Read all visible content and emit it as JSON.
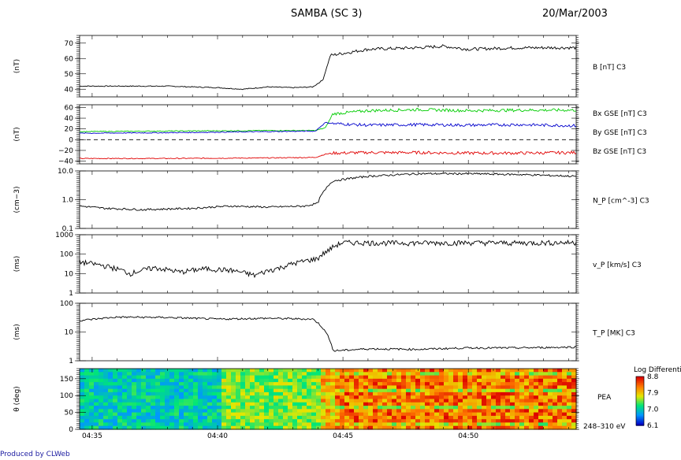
{
  "header": {
    "title": "SAMBA (SC 3)",
    "date": "20/Mar/2003"
  },
  "footer": {
    "credit": "Produced by CLWeb"
  },
  "colors": {
    "black": "#000000",
    "red": "#e00000",
    "green": "#00cc00",
    "blue": "#0000cc"
  },
  "chart_data": [
    {
      "type": "line",
      "panel": "B",
      "ylabel": "(nT)",
      "right_label": "B [nT] C3",
      "ylim": [
        35,
        75
      ],
      "yticks": [
        "40",
        "50",
        "60",
        "70"
      ],
      "x": [
        "04:34.5",
        "04:36",
        "04:38",
        "04:40",
        "04:41",
        "04:42",
        "04:43",
        "04:43.8",
        "04:44.2",
        "04:44.5",
        "04:46",
        "04:48",
        "04:49",
        "04:50",
        "04:52",
        "04:54.3"
      ],
      "series": [
        {
          "values": [
            42,
            42,
            42,
            41,
            40,
            41.5,
            41,
            41.5,
            46,
            62,
            66,
            67,
            68,
            66,
            67,
            67
          ]
        }
      ]
    },
    {
      "type": "line",
      "panel": "Bgse",
      "ylabel": "(nT)",
      "ylim": [
        -45,
        65
      ],
      "yticks": [
        "60",
        "40",
        "20",
        "0",
        "−20",
        "−40"
      ],
      "zero_line": "dashed",
      "x": [
        "04:34.5",
        "04:38",
        "04:42",
        "04:43.9",
        "04:44.3",
        "04:44.6",
        "04:46",
        "04:48",
        "04:50",
        "04:52",
        "04:54.3"
      ],
      "series": [
        {
          "name": "Bx GSE [nT] C3",
          "color": "#e00000",
          "values": [
            -35,
            -35,
            -34,
            -33,
            -27,
            -25,
            -24,
            -24,
            -25,
            -25,
            -24
          ]
        },
        {
          "name": "By GSE [nT] C3",
          "color": "#00cc00",
          "values": [
            15,
            16,
            17,
            17,
            22,
            48,
            54,
            56,
            54,
            55,
            55
          ]
        },
        {
          "name": "Bz GSE [nT] C3",
          "color": "#0000cc",
          "values": [
            12,
            13,
            15,
            16,
            32,
            30,
            27,
            28,
            27,
            28,
            26
          ]
        }
      ]
    },
    {
      "type": "line",
      "panel": "Np",
      "scale": "log",
      "ylabel": "(cm−3)",
      "right_label": "N_P [cm^-3] C3",
      "ylim": [
        0.1,
        10
      ],
      "yticks": [
        "10.0",
        "1.0",
        "0.1"
      ],
      "x": [
        "04:34.5",
        "04:35.5",
        "04:37",
        "04:39",
        "04:40.5",
        "04:42",
        "04:43.5",
        "04:44",
        "04:44.3",
        "04:44.6",
        "04:46",
        "04:48",
        "04:50",
        "04:52",
        "04:54.3"
      ],
      "series": [
        {
          "values": [
            0.6,
            0.5,
            0.45,
            0.5,
            0.6,
            0.55,
            0.6,
            0.75,
            2.2,
            4.5,
            6.5,
            8,
            8,
            7.5,
            6.5
          ]
        }
      ]
    },
    {
      "type": "line",
      "panel": "Vp",
      "scale": "log",
      "ylabel": "(ms)",
      "right_label": "v_P [km/s] C3",
      "ylim": [
        1,
        1000
      ],
      "yticks": [
        "1000",
        "100",
        "10",
        "1"
      ],
      "x": [
        "04:34.5",
        "04:35.5",
        "04:36.5",
        "04:37.5",
        "04:38.5",
        "04:39.5",
        "04:40.5",
        "04:41.5",
        "04:42.5",
        "04:43.5",
        "04:44",
        "04:44.4",
        "04:45",
        "04:47",
        "04:50",
        "04:52",
        "04:54.3"
      ],
      "series": [
        {
          "values": [
            40,
            25,
            10,
            20,
            12,
            18,
            15,
            8,
            20,
            45,
            60,
            150,
            400,
            380,
            390,
            380,
            400
          ]
        }
      ]
    },
    {
      "type": "line",
      "panel": "Tp",
      "scale": "log",
      "ylabel": "(ms)",
      "right_label": "T_P [MK] C3",
      "ylim": [
        1,
        100
      ],
      "yticks": [
        "100",
        "10",
        "1"
      ],
      "x": [
        "04:34.5",
        "04:36",
        "04:38",
        "04:40",
        "04:42",
        "04:43.8",
        "04:44.3",
        "04:44.6",
        "04:46",
        "04:48",
        "04:50",
        "04:52",
        "04:54.3"
      ],
      "series": [
        {
          "values": [
            25,
            33,
            32,
            28,
            30,
            28,
            10,
            2.2,
            2.6,
            2.5,
            2.8,
            2.8,
            3.0
          ]
        }
      ]
    },
    {
      "type": "heatmap",
      "panel": "PEA",
      "ylabel": "θ (deg)",
      "right_label": "PEA",
      "energy_label": "248–310 eV",
      "ylim": [
        0,
        180
      ],
      "yticks": [
        "150",
        "100",
        "50",
        "0"
      ],
      "colorbar": {
        "title": "Log Differenti",
        "ticks": [
          "8.8",
          "7.9",
          "7.0",
          "6.1"
        ]
      },
      "xticks": [
        "04:35",
        "04:40",
        "04:45",
        "04:50"
      ],
      "xlim": [
        "04:34.5",
        "04:54.3"
      ]
    }
  ]
}
